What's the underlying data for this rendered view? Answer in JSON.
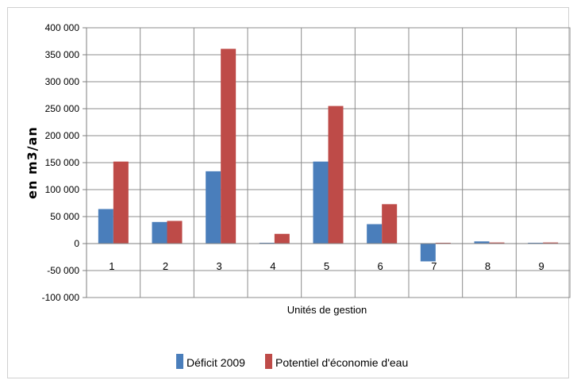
{
  "chart_data": {
    "type": "bar",
    "title": "",
    "xlabel": "Unités de gestion",
    "ylabel": "en m3/an",
    "categories": [
      "1",
      "2",
      "3",
      "4",
      "5",
      "6",
      "7",
      "8",
      "9"
    ],
    "series": [
      {
        "name": "Déficit 2009",
        "color": "#4a7ebb",
        "values": [
          64000,
          40000,
          134000,
          1500,
          152000,
          36000,
          -33000,
          4000,
          1500
        ]
      },
      {
        "name": "Potentiel d'économie d'eau",
        "color": "#be4b48",
        "values": [
          152000,
          42000,
          361000,
          18000,
          255000,
          73000,
          1500,
          2000,
          2000
        ]
      }
    ],
    "ylim": [
      -100000,
      400000
    ],
    "yticks": [
      400000,
      350000,
      300000,
      250000,
      200000,
      150000,
      100000,
      50000,
      0,
      -50000,
      -100000
    ],
    "ytick_labels": [
      "400 000",
      "350 000",
      "300 000",
      "250 000",
      "200 000",
      "150 000",
      "100 000",
      "50 000",
      "0",
      "-50 000",
      "-100 000"
    ],
    "grid": true,
    "legend_position": "bottom"
  }
}
